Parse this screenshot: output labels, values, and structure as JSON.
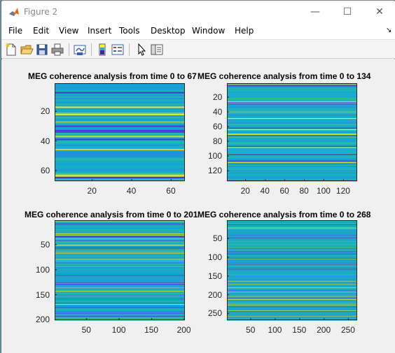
{
  "window": {
    "title": "Figure 2"
  },
  "title_buttons": {
    "minimize": "—",
    "maximize": "☐",
    "close": "✕"
  },
  "menu": {
    "items": [
      "File",
      "Edit",
      "View",
      "Insert",
      "Tools",
      "Desktop",
      "Window",
      "Help"
    ],
    "overflow": "↘"
  },
  "toolbar": {
    "icons": [
      "new-figure-icon",
      "open-file-icon",
      "save-icon",
      "print-icon",
      "link-plot-icon",
      "insert-colorbar-icon",
      "insert-legend-icon",
      "edit-plot-pointer-icon",
      "property-editor-icon"
    ]
  },
  "colors": {
    "parula_low": "#3e26a8",
    "parula_mid": "#1ab2c7",
    "parula_high": "#f9fb15"
  },
  "chart_data": [
    {
      "type": "heatmap",
      "title": "MEG coherence analysis from time 0 to 67",
      "x_ticks": [
        "20",
        "40",
        "60"
      ],
      "y_ticks": [
        "20",
        "40",
        "60"
      ],
      "xlim": [
        1,
        67
      ],
      "ylim": [
        1,
        67
      ],
      "rows": 67
    },
    {
      "type": "heatmap",
      "title": "MEG coherence analysis from time 0 to 134",
      "x_ticks": [
        "20",
        "40",
        "60",
        "80",
        "100",
        "120"
      ],
      "y_ticks": [
        "20",
        "40",
        "60",
        "80",
        "100",
        "120"
      ],
      "xlim": [
        1,
        134
      ],
      "ylim": [
        1,
        134
      ],
      "rows": 134
    },
    {
      "type": "heatmap",
      "title": "MEG coherence analysis from time 0 to 201",
      "x_ticks": [
        "50",
        "100",
        "150",
        "200"
      ],
      "y_ticks": [
        "50",
        "100",
        "150",
        "200"
      ],
      "xlim": [
        1,
        201
      ],
      "ylim": [
        1,
        201
      ],
      "rows": 201
    },
    {
      "type": "heatmap",
      "title": "MEG coherence analysis from time 0 to 268",
      "x_ticks": [
        "50",
        "100",
        "150",
        "200",
        "250"
      ],
      "y_ticks": [
        "50",
        "100",
        "150",
        "200",
        "250"
      ],
      "xlim": [
        1,
        268
      ],
      "ylim": [
        1,
        268
      ],
      "rows": 268
    }
  ]
}
